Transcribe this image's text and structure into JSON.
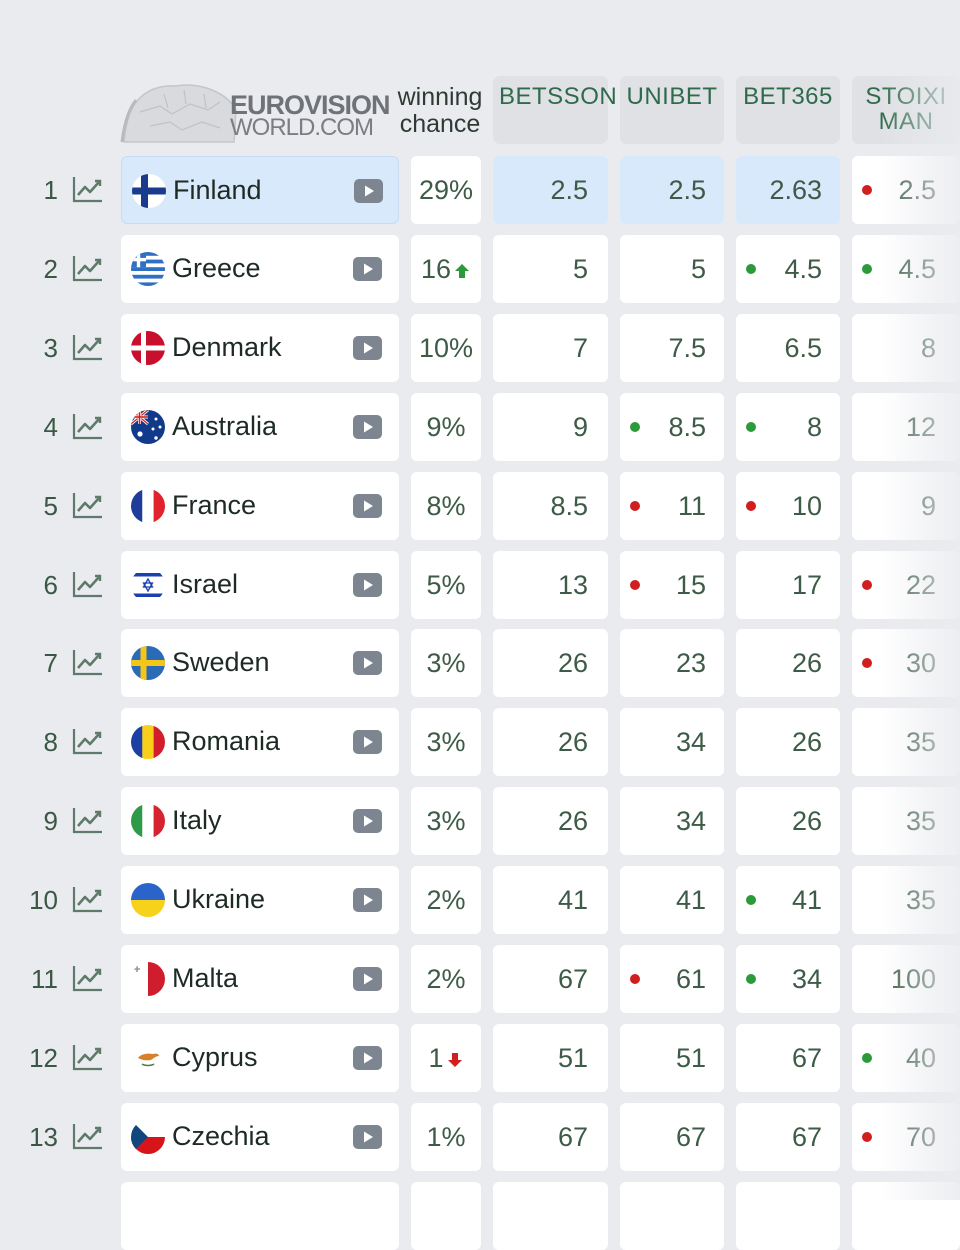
{
  "header": {
    "logo_line1": "EUROVISION",
    "logo_line2": "WORLD.COM",
    "winning_chance": "winning chance",
    "bookmakers": [
      "BETSSON",
      "UNIBET",
      "BET365",
      "STOIXI MAN"
    ]
  },
  "rows": [
    {
      "rank": "1",
      "country": "Finland",
      "flag_icon": "finland-flag-icon",
      "chance": "29%",
      "chance_trend": null,
      "highlight": true,
      "odds": [
        {
          "v": "2.5",
          "dot": null
        },
        {
          "v": "2.5",
          "dot": null
        },
        {
          "v": "2.63",
          "dot": null
        },
        {
          "v": "2.5",
          "dot": "red"
        }
      ]
    },
    {
      "rank": "2",
      "country": "Greece",
      "flag_icon": "greece-flag-icon",
      "chance": "16",
      "chance_trend": "up",
      "highlight": false,
      "odds": [
        {
          "v": "5",
          "dot": null
        },
        {
          "v": "5",
          "dot": null
        },
        {
          "v": "4.5",
          "dot": "green"
        },
        {
          "v": "4.5",
          "dot": "green"
        }
      ]
    },
    {
      "rank": "3",
      "country": "Denmark",
      "flag_icon": "denmark-flag-icon",
      "chance": "10%",
      "chance_trend": null,
      "highlight": false,
      "odds": [
        {
          "v": "7",
          "dot": null
        },
        {
          "v": "7.5",
          "dot": null
        },
        {
          "v": "6.5",
          "dot": null
        },
        {
          "v": "8",
          "dot": null
        }
      ]
    },
    {
      "rank": "4",
      "country": "Australia",
      "flag_icon": "australia-flag-icon",
      "chance": "9%",
      "chance_trend": null,
      "highlight": false,
      "odds": [
        {
          "v": "9",
          "dot": null
        },
        {
          "v": "8.5",
          "dot": "green"
        },
        {
          "v": "8",
          "dot": "green"
        },
        {
          "v": "12",
          "dot": null
        }
      ]
    },
    {
      "rank": "5",
      "country": "France",
      "flag_icon": "france-flag-icon",
      "chance": "8%",
      "chance_trend": null,
      "highlight": false,
      "odds": [
        {
          "v": "8.5",
          "dot": null
        },
        {
          "v": "11",
          "dot": "red"
        },
        {
          "v": "10",
          "dot": "red"
        },
        {
          "v": "9",
          "dot": null
        }
      ]
    },
    {
      "rank": "6",
      "country": "Israel",
      "flag_icon": "israel-flag-icon",
      "chance": "5%",
      "chance_trend": null,
      "highlight": false,
      "odds": [
        {
          "v": "13",
          "dot": null
        },
        {
          "v": "15",
          "dot": "red"
        },
        {
          "v": "17",
          "dot": null
        },
        {
          "v": "22",
          "dot": "red"
        }
      ]
    },
    {
      "rank": "7",
      "country": "Sweden",
      "flag_icon": "sweden-flag-icon",
      "chance": "3%",
      "chance_trend": null,
      "highlight": false,
      "odds": [
        {
          "v": "26",
          "dot": null
        },
        {
          "v": "23",
          "dot": null
        },
        {
          "v": "26",
          "dot": null
        },
        {
          "v": "30",
          "dot": "red"
        }
      ]
    },
    {
      "rank": "8",
      "country": "Romania",
      "flag_icon": "romania-flag-icon",
      "chance": "3%",
      "chance_trend": null,
      "highlight": false,
      "odds": [
        {
          "v": "26",
          "dot": null
        },
        {
          "v": "34",
          "dot": null
        },
        {
          "v": "26",
          "dot": null
        },
        {
          "v": "35",
          "dot": null
        }
      ]
    },
    {
      "rank": "9",
      "country": "Italy",
      "flag_icon": "italy-flag-icon",
      "chance": "3%",
      "chance_trend": null,
      "highlight": false,
      "odds": [
        {
          "v": "26",
          "dot": null
        },
        {
          "v": "34",
          "dot": null
        },
        {
          "v": "26",
          "dot": null
        },
        {
          "v": "35",
          "dot": null
        }
      ]
    },
    {
      "rank": "10",
      "country": "Ukraine",
      "flag_icon": "ukraine-flag-icon",
      "chance": "2%",
      "chance_trend": null,
      "highlight": false,
      "odds": [
        {
          "v": "41",
          "dot": null
        },
        {
          "v": "41",
          "dot": null
        },
        {
          "v": "41",
          "dot": "green"
        },
        {
          "v": "35",
          "dot": null
        }
      ]
    },
    {
      "rank": "11",
      "country": "Malta",
      "flag_icon": "malta-flag-icon",
      "chance": "2%",
      "chance_trend": null,
      "highlight": false,
      "odds": [
        {
          "v": "67",
          "dot": null
        },
        {
          "v": "61",
          "dot": "red"
        },
        {
          "v": "34",
          "dot": "green"
        },
        {
          "v": "100",
          "dot": null
        }
      ]
    },
    {
      "rank": "12",
      "country": "Cyprus",
      "flag_icon": "cyprus-flag-icon",
      "chance": "1",
      "chance_trend": "down",
      "highlight": false,
      "odds": [
        {
          "v": "51",
          "dot": null
        },
        {
          "v": "51",
          "dot": null
        },
        {
          "v": "67",
          "dot": null
        },
        {
          "v": "40",
          "dot": "green"
        }
      ]
    },
    {
      "rank": "13",
      "country": "Czechia",
      "flag_icon": "czechia-flag-icon",
      "chance": "1%",
      "chance_trend": null,
      "highlight": false,
      "odds": [
        {
          "v": "67",
          "dot": null
        },
        {
          "v": "67",
          "dot": null
        },
        {
          "v": "67",
          "dot": null
        },
        {
          "v": "70",
          "dot": "red"
        }
      ]
    }
  ],
  "colors": {
    "background": "#eaebef",
    "highlight": "#d8e9fb",
    "odds_text": "#3d5b47",
    "dot_green": "#2c9a3a",
    "dot_red": "#d11e1e",
    "arrow_up": "#2c9a3a",
    "arrow_down": "#d11e1e"
  }
}
